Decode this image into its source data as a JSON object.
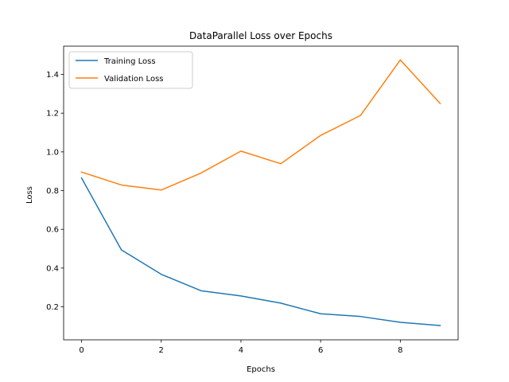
{
  "chart_data": {
    "type": "line",
    "title": "DataParallel Loss over Epochs",
    "xlabel": "Epochs",
    "ylabel": "Loss",
    "x": [
      0,
      1,
      2,
      3,
      4,
      5,
      6,
      7,
      8,
      9
    ],
    "xlim": [
      -0.45,
      9.45
    ],
    "ylim": [
      0.0295,
      1.546
    ],
    "xticks": [
      0,
      2,
      4,
      6,
      8
    ],
    "xtick_labels": [
      "0",
      "2",
      "4",
      "6",
      "8"
    ],
    "yticks": [
      0.2,
      0.4,
      0.6,
      0.8,
      1.0,
      1.2,
      1.4
    ],
    "ytick_labels": [
      "0.2",
      "0.4",
      "0.6",
      "0.8",
      "1.0",
      "1.2",
      "1.4"
    ],
    "grid": false,
    "legend_position": "upper-left",
    "series": [
      {
        "name": "Training Loss",
        "color": "#1f77b4",
        "values": [
          0.865,
          0.494,
          0.368,
          0.283,
          0.256,
          0.219,
          0.164,
          0.15,
          0.12,
          0.103
        ]
      },
      {
        "name": "Validation Loss",
        "color": "#ff7f0e",
        "values": [
          0.896,
          0.829,
          0.803,
          0.891,
          1.004,
          0.939,
          1.085,
          1.188,
          1.475,
          1.25
        ]
      }
    ]
  }
}
